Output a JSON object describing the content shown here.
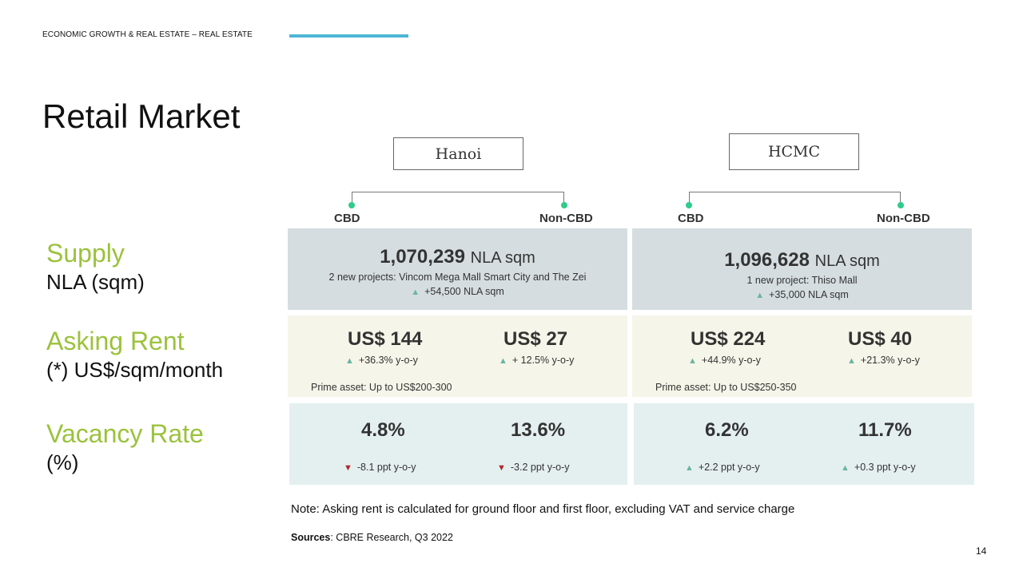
{
  "header": {
    "section": "ECONOMIC GROWTH & REAL ESTATE – REAL ESTATE"
  },
  "title": "Retail Market",
  "rows": {
    "supply": {
      "label": "Supply",
      "unit": "NLA (sqm)"
    },
    "rent": {
      "label": "Asking Rent",
      "unit": "(*) US$/sqm/month"
    },
    "vacancy": {
      "label": "Vacancy Rate",
      "unit": "(%)"
    }
  },
  "cities": [
    {
      "name": "Hanoi",
      "branches": [
        "CBD",
        "Non-CBD"
      ],
      "supply": {
        "value": "1,070,239",
        "unit": "NLA sqm",
        "detail": "2 new projects: Vincom Mega Mall Smart City and The Zei",
        "change": "+54,500 NLA sqm"
      },
      "rent": {
        "cbd": "US$ 144",
        "cbd_change": "+36.3% y-o-y",
        "noncbd": "US$ 27",
        "noncbd_change": "+ 12.5% y-o-y",
        "prime": "Prime asset: Up to US$200-300"
      },
      "vacancy": {
        "cbd": "4.8%",
        "cbd_change": "-8.1 ppt y-o-y",
        "noncbd": "13.6%",
        "noncbd_change": "-3.2 ppt y-o-y"
      }
    },
    {
      "name": "HCMC",
      "branches": [
        "CBD",
        "Non-CBD"
      ],
      "supply": {
        "value": "1,096,628",
        "unit": "NLA sqm",
        "detail": "1 new project: Thiso Mall",
        "change": "+35,000 NLA sqm"
      },
      "rent": {
        "cbd": "US$ 224",
        "cbd_change": "+44.9% y-o-y",
        "noncbd": "US$ 40",
        "noncbd_change": "+21.3% y-o-y",
        "prime": "Prime asset: Up to US$250-350"
      },
      "vacancy": {
        "cbd": "6.2%",
        "cbd_change": "+2.2 ppt y-o-y",
        "noncbd": "11.7%",
        "noncbd_change": "+0.3 ppt y-o-y"
      }
    }
  ],
  "note": "Note: Asking rent is calculated for ground floor and first floor, excluding VAT and service charge",
  "sources": {
    "label": "Sources",
    "text": ": CBRE Research, Q3 2022"
  },
  "page_number": "14",
  "colors": {
    "accent_green": "#9bc23c",
    "header_rule": "#4fb6d6",
    "up_arrow": "#6bb5a0",
    "down_arrow": "#b0262a"
  }
}
